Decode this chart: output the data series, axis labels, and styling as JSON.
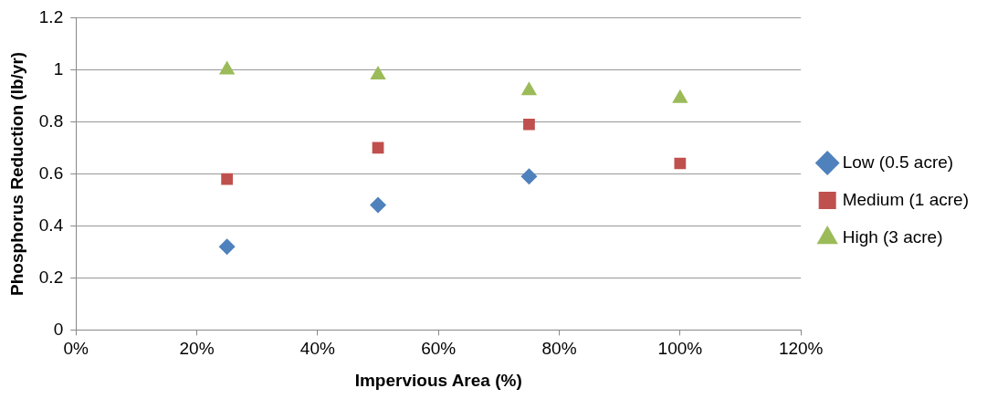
{
  "chart_data": {
    "type": "scatter",
    "xlabel": "Impervious Area (%)",
    "ylabel": "Phosphorus Reduction (lb/yr)",
    "x": [
      25,
      50,
      75,
      100
    ],
    "series": [
      {
        "name": "Low (0.5 acre)",
        "color": "#4f81bd",
        "marker": "diamond",
        "values": [
          0.32,
          0.48,
          0.59,
          null
        ]
      },
      {
        "name": "Medium (1 acre)",
        "color": "#c0504d",
        "marker": "square",
        "values": [
          0.58,
          0.7,
          0.79,
          0.64
        ]
      },
      {
        "name": "High (3 acre)",
        "color": "#9bbb59",
        "marker": "triangle",
        "values": [
          1.0,
          0.98,
          0.92,
          0.89
        ]
      }
    ],
    "xlim": [
      0,
      120
    ],
    "xticks": [
      {
        "value": 0,
        "label": "0%"
      },
      {
        "value": 20,
        "label": "20%"
      },
      {
        "value": 40,
        "label": "40%"
      },
      {
        "value": 60,
        "label": "60%"
      },
      {
        "value": 80,
        "label": "80%"
      },
      {
        "value": 100,
        "label": "100%"
      },
      {
        "value": 120,
        "label": "120%"
      }
    ],
    "ylim": [
      0,
      1.2
    ],
    "yticks": [
      0,
      0.2,
      0.4,
      0.6,
      0.8,
      1,
      1.2
    ],
    "grid": "y",
    "legend": "right"
  }
}
